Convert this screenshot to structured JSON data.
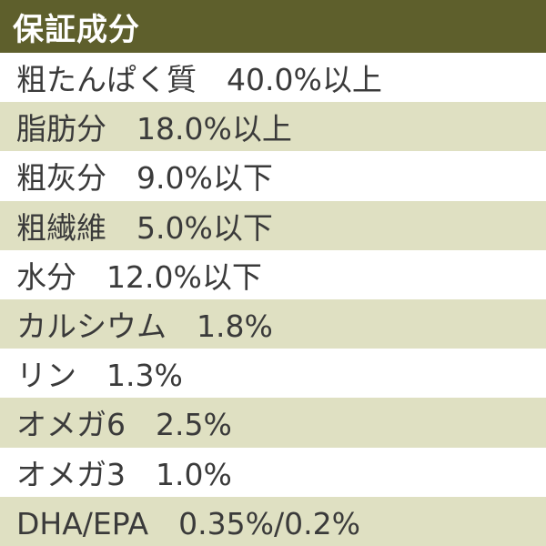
{
  "header": {
    "title": "保証成分"
  },
  "rows": [
    {
      "text": "粗たんぱく質　40.0%以上",
      "shaded": false
    },
    {
      "text": "脂肪分　18.0%以上",
      "shaded": true
    },
    {
      "text": "粗灰分　9.0%以下",
      "shaded": false
    },
    {
      "text": "粗繊維　5.0%以下",
      "shaded": true
    },
    {
      "text": "水分　12.0%以下",
      "shaded": false
    },
    {
      "text": "カルシウム　1.8%",
      "shaded": true
    },
    {
      "text": "リン　1.3%",
      "shaded": false
    },
    {
      "text": "オメガ6　2.5%",
      "shaded": true
    },
    {
      "text": "オメガ3　1.0%",
      "shaded": false
    },
    {
      "text": "DHA/EPA　0.35%/0.2%",
      "shaded": true
    }
  ],
  "colors": {
    "header_bg": "#5e5f2c",
    "header_text": "#ffffff",
    "row_shaded": "#dfe0c2",
    "row_plain": "#ffffff",
    "text": "#3a3a3a"
  }
}
